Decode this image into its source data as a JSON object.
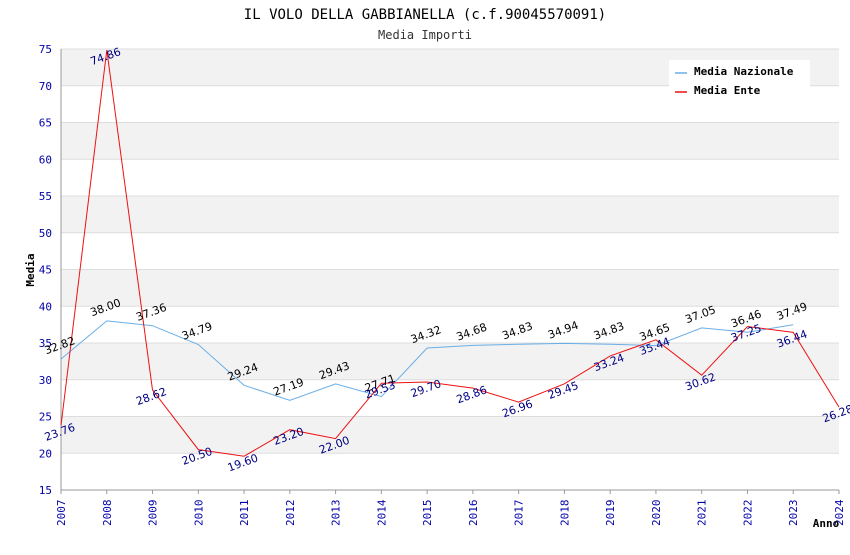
{
  "chart_data": {
    "type": "line",
    "title": "IL VOLO DELLA GABBIANELLA (c.f.90045570091)",
    "subtitle": "Media Importi",
    "xlabel": "Anno",
    "ylabel": "Media",
    "ylim": [
      15,
      75
    ],
    "yticks": [
      "15",
      "20",
      "25",
      "30",
      "35",
      "40",
      "45",
      "50",
      "55",
      "60",
      "65",
      "70",
      "75"
    ],
    "categories": [
      "2007",
      "2008",
      "2009",
      "2010",
      "2011",
      "2012",
      "2013",
      "2014",
      "2015",
      "2016",
      "2017",
      "2018",
      "2019",
      "2020",
      "2021",
      "2022",
      "2023",
      "2024"
    ],
    "series": [
      {
        "name": "Media Nazionale",
        "color": "#6aaee8",
        "label_color": "#000000",
        "values": [
          32.82,
          38.0,
          37.36,
          34.79,
          29.24,
          27.19,
          29.43,
          27.71,
          34.32,
          34.68,
          34.83,
          34.94,
          34.83,
          34.65,
          37.05,
          36.46,
          37.49,
          null
        ],
        "labels": [
          "32.82",
          "38.00",
          "37.36",
          "34.79",
          "29.24",
          "27.19",
          "29.43",
          "27.71",
          "34.32",
          "34.68",
          "34.83",
          "34.94",
          "34.83",
          "34.65",
          "37.05",
          "36.46",
          "37.49",
          ""
        ]
      },
      {
        "name": "Media Ente",
        "color": "#ee1111",
        "label_color": "#000080",
        "values": [
          23.76,
          74.86,
          28.62,
          20.5,
          19.6,
          23.2,
          22.0,
          29.53,
          29.7,
          28.86,
          26.96,
          29.45,
          33.24,
          35.44,
          30.62,
          37.25,
          36.44,
          26.28
        ],
        "labels": [
          "23.76",
          "74.86",
          "28.62",
          "20.50",
          "19.60",
          "23.20",
          "22.00",
          "29.53",
          "29.70",
          "28.86",
          "26.96",
          "29.45",
          "33.24",
          "35.44",
          "30.62",
          "37.25",
          "36.44",
          "26.28"
        ]
      }
    ],
    "legend": {
      "position": "top-right"
    },
    "grid": true
  }
}
